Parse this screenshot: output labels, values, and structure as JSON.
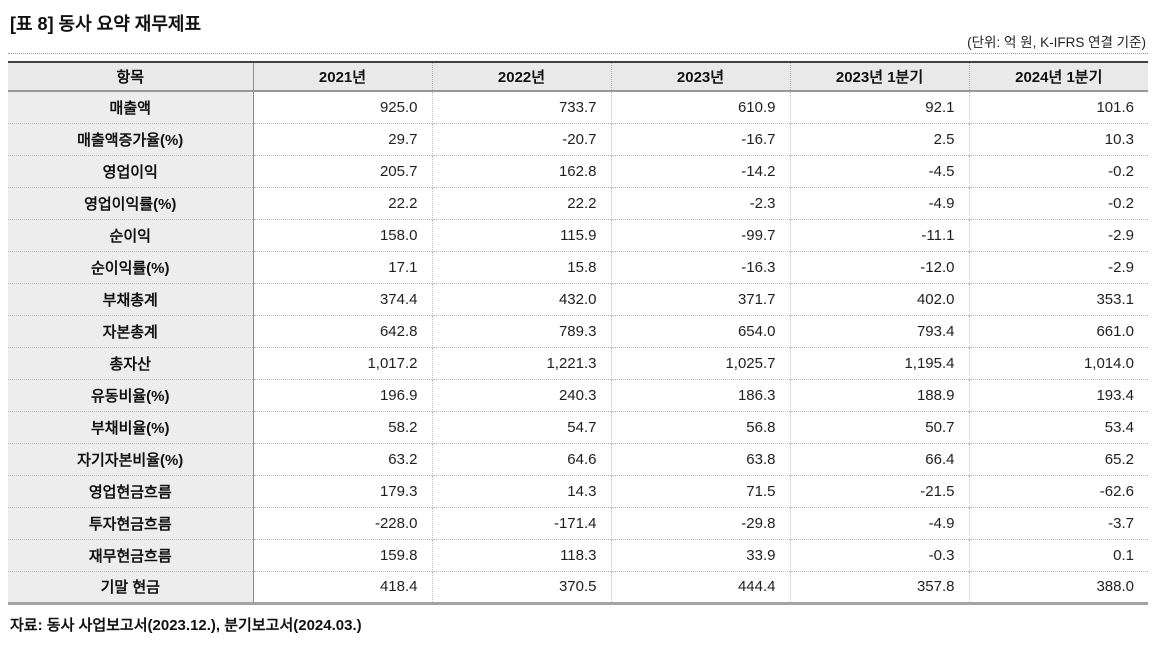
{
  "title": "[표 8] 동사 요약 재무제표",
  "unit_note": "(단위: 억 원, K-IFRS 연결 기준)",
  "table": {
    "columns": [
      "항목",
      "2021년",
      "2022년",
      "2023년",
      "2023년 1분기",
      "2024년 1분기"
    ],
    "rows": [
      {
        "label": "매출액",
        "values": [
          "925.0",
          "733.7",
          "610.9",
          "92.1",
          "101.6"
        ]
      },
      {
        "label": "매출액증가율(%)",
        "values": [
          "29.7",
          "-20.7",
          "-16.7",
          "2.5",
          "10.3"
        ]
      },
      {
        "label": "영업이익",
        "values": [
          "205.7",
          "162.8",
          "-14.2",
          "-4.5",
          "-0.2"
        ]
      },
      {
        "label": "영업이익률(%)",
        "values": [
          "22.2",
          "22.2",
          "-2.3",
          "-4.9",
          "-0.2"
        ]
      },
      {
        "label": "순이익",
        "values": [
          "158.0",
          "115.9",
          "-99.7",
          "-11.1",
          "-2.9"
        ]
      },
      {
        "label": "순이익률(%)",
        "values": [
          "17.1",
          "15.8",
          "-16.3",
          "-12.0",
          "-2.9"
        ]
      },
      {
        "label": "부채총계",
        "values": [
          "374.4",
          "432.0",
          "371.7",
          "402.0",
          "353.1"
        ]
      },
      {
        "label": "자본총계",
        "values": [
          "642.8",
          "789.3",
          "654.0",
          "793.4",
          "661.0"
        ]
      },
      {
        "label": "총자산",
        "values": [
          "1,017.2",
          "1,221.3",
          "1,025.7",
          "1,195.4",
          "1,014.0"
        ]
      },
      {
        "label": "유동비율(%)",
        "values": [
          "196.9",
          "240.3",
          "186.3",
          "188.9",
          "193.4"
        ]
      },
      {
        "label": "부채비율(%)",
        "values": [
          "58.2",
          "54.7",
          "56.8",
          "50.7",
          "53.4"
        ]
      },
      {
        "label": "자기자본비율(%)",
        "values": [
          "63.2",
          "64.6",
          "63.8",
          "66.4",
          "65.2"
        ]
      },
      {
        "label": "영업현금흐름",
        "values": [
          "179.3",
          "14.3",
          "71.5",
          "-21.5",
          "-62.6"
        ]
      },
      {
        "label": "투자현금흐름",
        "values": [
          "-228.0",
          "-171.4",
          "-29.8",
          "-4.9",
          "-3.7"
        ]
      },
      {
        "label": "재무현금흐름",
        "values": [
          "159.8",
          "118.3",
          "33.9",
          "-0.3",
          "0.1"
        ]
      },
      {
        "label": "기말 현금",
        "values": [
          "418.4",
          "370.5",
          "444.4",
          "357.8",
          "388.0"
        ]
      }
    ]
  },
  "source_note": "자료: 동사 사업보고서(2023.12.), 분기보고서(2024.03.)",
  "colors": {
    "header_bg": "#e9e9e9",
    "label_col_bg": "#ededed",
    "table_top_border": "#424242",
    "table_bottom_border": "#a3a3a3",
    "grid_dotted": "#b8b8b8",
    "text": "#1a1a1a"
  }
}
